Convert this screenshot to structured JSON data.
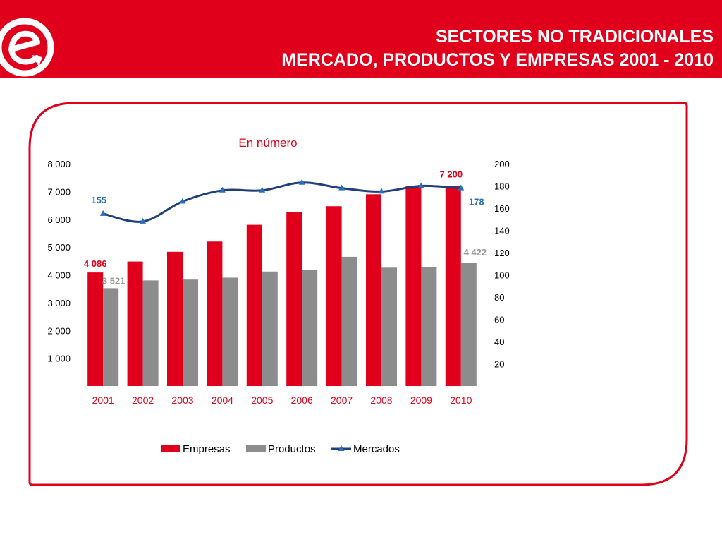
{
  "header": {
    "title_line1": "SECTORES NO TRADICIONALES",
    "title_line2": "MERCADO, PRODUCTOS Y EMPRESAS 2001 - 2010",
    "logo_letter": "e"
  },
  "colors": {
    "brand_red": "#e0001b",
    "bar_gray": "#8c8c8c",
    "line_blue": "#1f3f7a",
    "label_blue": "#2a6fb5",
    "label_gray": "#9a9a9a",
    "axis_text": "#000000"
  },
  "chart_data": {
    "type": "bar",
    "title": "En número",
    "categories": [
      "2001",
      "2002",
      "2003",
      "2004",
      "2005",
      "2006",
      "2007",
      "2008",
      "2009",
      "2010"
    ],
    "series": [
      {
        "name": "Empresas",
        "type": "bar",
        "axis": "left",
        "values": [
          4086,
          4480,
          4830,
          5200,
          5800,
          6270,
          6470,
          6900,
          7200,
          7200
        ]
      },
      {
        "name": "Productos",
        "type": "bar",
        "axis": "left",
        "values": [
          3521,
          3800,
          3830,
          3900,
          4120,
          4180,
          4650,
          4260,
          4290,
          4422
        ]
      },
      {
        "name": "Mercados",
        "type": "line",
        "axis": "right",
        "values": [
          155,
          148,
          166,
          176,
          176,
          183,
          178,
          175,
          180,
          178
        ]
      }
    ],
    "left_axis": {
      "ylim": [
        0,
        8000
      ],
      "ticks": [
        0,
        1000,
        2000,
        3000,
        4000,
        5000,
        6000,
        7000,
        8000
      ],
      "tick_labels": [
        "-",
        "1 000",
        "2 000",
        "3 000",
        "4 000",
        "5 000",
        "6 000",
        "7 000",
        "8 000"
      ]
    },
    "right_axis": {
      "ylim": [
        0,
        200
      ],
      "ticks": [
        0,
        20,
        40,
        60,
        80,
        100,
        120,
        140,
        160,
        180,
        200
      ],
      "tick_labels": [
        "-",
        "20",
        "40",
        "60",
        "80",
        "100",
        "120",
        "140",
        "160",
        "180",
        "200"
      ]
    },
    "data_labels": [
      {
        "series": "Empresas",
        "index": 0,
        "text": "4 086"
      },
      {
        "series": "Empresas",
        "index": 9,
        "text": "7 200"
      },
      {
        "series": "Productos",
        "index": 0,
        "text": "3 521"
      },
      {
        "series": "Productos",
        "index": 9,
        "text": "4 422"
      },
      {
        "series": "Mercados",
        "index": 0,
        "text": "155"
      },
      {
        "series": "Mercados",
        "index": 9,
        "text": "178"
      }
    ],
    "legend": {
      "position": "bottom",
      "entries": [
        "Empresas",
        "Productos",
        "Mercados"
      ]
    },
    "grid": false
  }
}
